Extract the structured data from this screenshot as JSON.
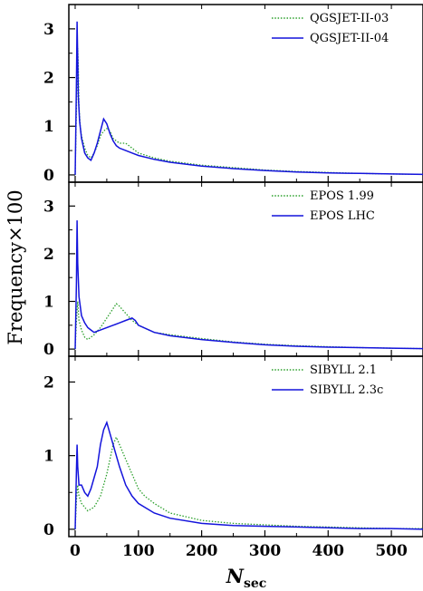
{
  "figure": {
    "ylabel": "Frequency×100",
    "xlabel_main": "N",
    "xlabel_sub": "sec"
  },
  "chart_data": [
    {
      "type": "line",
      "panel": "top",
      "xlim": [
        -10,
        550
      ],
      "ylim": [
        -0.15,
        3.5
      ],
      "yticks": [
        0,
        1,
        2,
        3
      ],
      "legend_position": "top-right",
      "series": [
        {
          "name": "QGSJET-II-03",
          "color": "#2ca02c",
          "style": "dotted",
          "points": [
            [
              0,
              0
            ],
            [
              2,
              1.4
            ],
            [
              4,
              2.6
            ],
            [
              5,
              2.2
            ],
            [
              6,
              1.4
            ],
            [
              8,
              1.0
            ],
            [
              10,
              0.8
            ],
            [
              15,
              0.55
            ],
            [
              20,
              0.4
            ],
            [
              25,
              0.35
            ],
            [
              30,
              0.45
            ],
            [
              35,
              0.6
            ],
            [
              40,
              0.8
            ],
            [
              45,
              0.9
            ],
            [
              50,
              0.95
            ],
            [
              55,
              0.9
            ],
            [
              60,
              0.75
            ],
            [
              65,
              0.7
            ],
            [
              70,
              0.65
            ],
            [
              80,
              0.65
            ],
            [
              90,
              0.55
            ],
            [
              100,
              0.45
            ],
            [
              125,
              0.35
            ],
            [
              150,
              0.28
            ],
            [
              200,
              0.2
            ],
            [
              250,
              0.15
            ],
            [
              300,
              0.1
            ],
            [
              350,
              0.07
            ],
            [
              400,
              0.05
            ],
            [
              450,
              0.03
            ],
            [
              500,
              0.02
            ],
            [
              550,
              0.01
            ]
          ]
        },
        {
          "name": "QGSJET-II-04",
          "color": "#1414dc",
          "style": "solid",
          "points": [
            [
              0,
              0
            ],
            [
              2,
              1.9
            ],
            [
              3,
              3.15
            ],
            [
              4,
              2.4
            ],
            [
              5,
              1.6
            ],
            [
              7,
              1.1
            ],
            [
              10,
              0.75
            ],
            [
              15,
              0.45
            ],
            [
              20,
              0.35
            ],
            [
              25,
              0.3
            ],
            [
              30,
              0.45
            ],
            [
              35,
              0.65
            ],
            [
              40,
              0.9
            ],
            [
              45,
              1.15
            ],
            [
              50,
              1.05
            ],
            [
              55,
              0.85
            ],
            [
              60,
              0.7
            ],
            [
              65,
              0.6
            ],
            [
              70,
              0.55
            ],
            [
              80,
              0.5
            ],
            [
              90,
              0.45
            ],
            [
              100,
              0.4
            ],
            [
              125,
              0.32
            ],
            [
              150,
              0.26
            ],
            [
              200,
              0.18
            ],
            [
              250,
              0.13
            ],
            [
              300,
              0.09
            ],
            [
              350,
              0.06
            ],
            [
              400,
              0.04
            ],
            [
              450,
              0.03
            ],
            [
              500,
              0.02
            ],
            [
              550,
              0.01
            ]
          ]
        }
      ]
    },
    {
      "type": "line",
      "panel": "middle",
      "xlim": [
        -10,
        550
      ],
      "ylim": [
        -0.15,
        3.5
      ],
      "yticks": [
        0,
        1,
        2,
        3
      ],
      "legend_position": "top-right",
      "series": [
        {
          "name": "EPOS 1.99",
          "color": "#2ca02c",
          "style": "dotted",
          "points": [
            [
              0,
              0
            ],
            [
              2,
              0.6
            ],
            [
              4,
              1.0
            ],
            [
              6,
              0.6
            ],
            [
              10,
              0.4
            ],
            [
              15,
              0.25
            ],
            [
              20,
              0.2
            ],
            [
              30,
              0.3
            ],
            [
              40,
              0.45
            ],
            [
              50,
              0.65
            ],
            [
              60,
              0.85
            ],
            [
              65,
              0.95
            ],
            [
              70,
              0.9
            ],
            [
              80,
              0.75
            ],
            [
              90,
              0.6
            ],
            [
              100,
              0.5
            ],
            [
              125,
              0.35
            ],
            [
              150,
              0.3
            ],
            [
              200,
              0.22
            ],
            [
              250,
              0.15
            ],
            [
              300,
              0.1
            ],
            [
              350,
              0.07
            ],
            [
              400,
              0.05
            ],
            [
              450,
              0.03
            ],
            [
              500,
              0.02
            ],
            [
              550,
              0.01
            ]
          ]
        },
        {
          "name": "EPOS LHC",
          "color": "#1414dc",
          "style": "solid",
          "points": [
            [
              0,
              0
            ],
            [
              2,
              1.4
            ],
            [
              3,
              2.7
            ],
            [
              4,
              1.8
            ],
            [
              6,
              1.1
            ],
            [
              10,
              0.7
            ],
            [
              15,
              0.55
            ],
            [
              20,
              0.45
            ],
            [
              25,
              0.4
            ],
            [
              30,
              0.35
            ],
            [
              40,
              0.4
            ],
            [
              50,
              0.45
            ],
            [
              60,
              0.5
            ],
            [
              70,
              0.55
            ],
            [
              80,
              0.6
            ],
            [
              90,
              0.65
            ],
            [
              95,
              0.6
            ],
            [
              100,
              0.5
            ],
            [
              125,
              0.35
            ],
            [
              150,
              0.28
            ],
            [
              200,
              0.2
            ],
            [
              250,
              0.14
            ],
            [
              300,
              0.09
            ],
            [
              350,
              0.06
            ],
            [
              400,
              0.04
            ],
            [
              450,
              0.03
            ],
            [
              500,
              0.02
            ],
            [
              550,
              0.01
            ]
          ]
        }
      ]
    },
    {
      "type": "line",
      "panel": "bottom",
      "xlim": [
        -10,
        550
      ],
      "ylim": [
        -0.1,
        2.35
      ],
      "yticks": [
        0,
        1,
        2
      ],
      "legend_position": "top-right",
      "series": [
        {
          "name": "SIBYLL 2.1",
          "color": "#2ca02c",
          "style": "dotted",
          "points": [
            [
              0,
              0
            ],
            [
              2,
              0.4
            ],
            [
              4,
              0.6
            ],
            [
              6,
              0.45
            ],
            [
              10,
              0.35
            ],
            [
              20,
              0.25
            ],
            [
              30,
              0.3
            ],
            [
              40,
              0.45
            ],
            [
              50,
              0.75
            ],
            [
              55,
              0.95
            ],
            [
              60,
              1.15
            ],
            [
              65,
              1.25
            ],
            [
              70,
              1.15
            ],
            [
              80,
              0.95
            ],
            [
              90,
              0.75
            ],
            [
              100,
              0.55
            ],
            [
              110,
              0.45
            ],
            [
              125,
              0.35
            ],
            [
              150,
              0.22
            ],
            [
              200,
              0.12
            ],
            [
              250,
              0.08
            ],
            [
              300,
              0.06
            ],
            [
              350,
              0.04
            ],
            [
              400,
              0.03
            ],
            [
              450,
              0.02
            ],
            [
              500,
              0.01
            ],
            [
              550,
              0.01
            ]
          ]
        },
        {
          "name": "SIBYLL 2.3c",
          "color": "#1414dc",
          "style": "solid",
          "points": [
            [
              0,
              0
            ],
            [
              2,
              0.8
            ],
            [
              3,
              1.15
            ],
            [
              4,
              0.85
            ],
            [
              6,
              0.6
            ],
            [
              10,
              0.6
            ],
            [
              15,
              0.5
            ],
            [
              20,
              0.45
            ],
            [
              25,
              0.55
            ],
            [
              30,
              0.7
            ],
            [
              35,
              0.85
            ],
            [
              40,
              1.15
            ],
            [
              45,
              1.35
            ],
            [
              50,
              1.45
            ],
            [
              55,
              1.3
            ],
            [
              60,
              1.15
            ],
            [
              65,
              1.0
            ],
            [
              70,
              0.85
            ],
            [
              80,
              0.6
            ],
            [
              90,
              0.45
            ],
            [
              100,
              0.35
            ],
            [
              125,
              0.22
            ],
            [
              150,
              0.15
            ],
            [
              200,
              0.08
            ],
            [
              250,
              0.05
            ],
            [
              300,
              0.04
            ],
            [
              350,
              0.03
            ],
            [
              400,
              0.02
            ],
            [
              450,
              0.01
            ],
            [
              500,
              0.01
            ],
            [
              550,
              0.0
            ]
          ]
        }
      ]
    }
  ],
  "xaxis": {
    "ticks": [
      0,
      100,
      200,
      300,
      400,
      500
    ]
  }
}
